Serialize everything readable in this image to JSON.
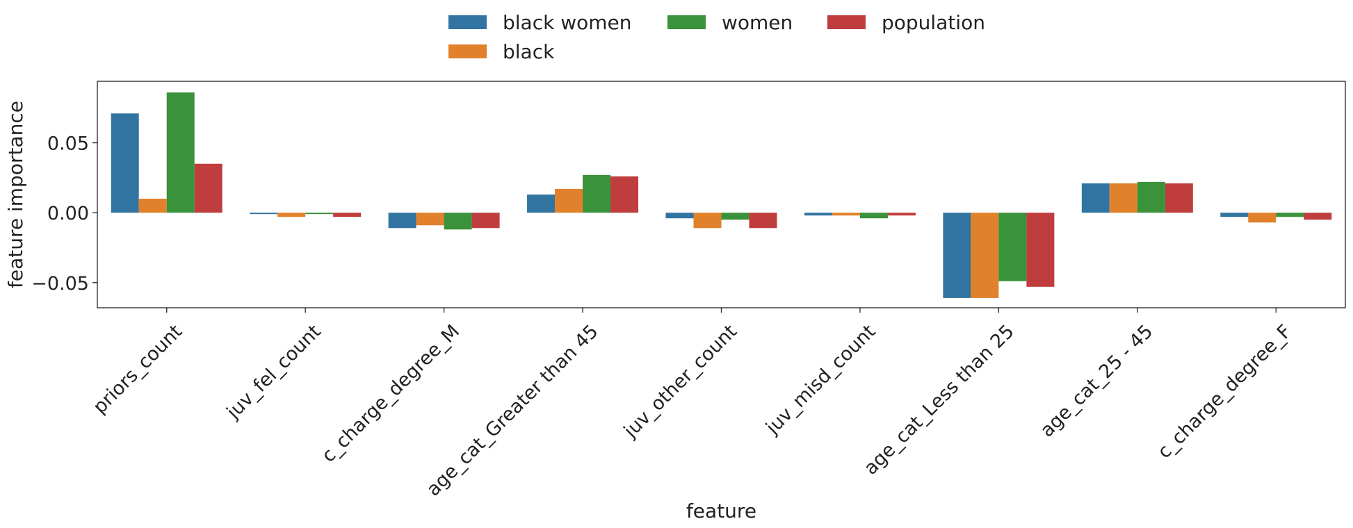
{
  "chart_data": {
    "type": "bar",
    "title": "",
    "xlabel": "feature",
    "ylabel": "feature importance",
    "ylim": [
      -0.068,
      0.094
    ],
    "yticks": [
      0.05,
      0.0,
      -0.05
    ],
    "ytick_labels": [
      "0.05",
      "0.00",
      "−0.05"
    ],
    "legend_position": "top-center",
    "grid": false,
    "categories": [
      "priors_count",
      "juv_fel_count",
      "c_charge_degree_M",
      "age_cat_Greater than 45",
      "juv_other_count",
      "juv_misd_count",
      "age_cat_Less than 25",
      "age_cat_25 - 45",
      "c_charge_degree_F"
    ],
    "series": [
      {
        "name": "black women",
        "color": "#3274a1",
        "values": [
          0.071,
          -0.001,
          -0.011,
          0.013,
          -0.004,
          -0.002,
          -0.061,
          0.021,
          -0.003
        ]
      },
      {
        "name": "black",
        "color": "#e1812c",
        "values": [
          0.01,
          -0.003,
          -0.009,
          0.017,
          -0.011,
          -0.002,
          -0.061,
          0.021,
          -0.007
        ]
      },
      {
        "name": "women",
        "color": "#3a923a",
        "values": [
          0.086,
          -0.001,
          -0.012,
          0.027,
          -0.005,
          -0.004,
          -0.049,
          0.022,
          -0.003
        ]
      },
      {
        "name": "population",
        "color": "#c03d3e",
        "values": [
          0.035,
          -0.003,
          -0.011,
          0.026,
          -0.011,
          -0.002,
          -0.053,
          0.021,
          -0.005
        ]
      }
    ]
  }
}
